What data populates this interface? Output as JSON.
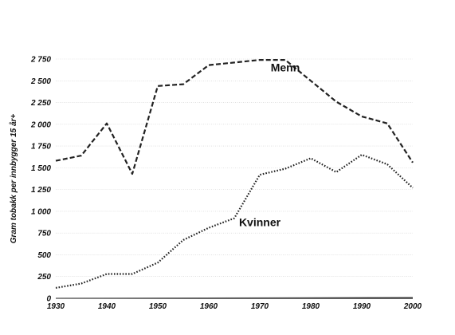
{
  "chart_data": {
    "type": "line",
    "ylabel": "Gram tobakk per innbygger 15 år+",
    "xlabel": "",
    "title": "",
    "xlim": [
      1930,
      2000
    ],
    "ylim": [
      0,
      2750
    ],
    "x_ticks": [
      1930,
      1940,
      1950,
      1960,
      1970,
      1980,
      1990,
      2000
    ],
    "y_ticks": [
      0,
      250,
      500,
      750,
      1000,
      1250,
      1500,
      1750,
      2000,
      2250,
      2500,
      2750
    ],
    "y_tick_labels": [
      "0",
      "250",
      "500",
      "750",
      "1 000",
      "1 250",
      "1 500",
      "1 750",
      "2 000",
      "2 250",
      "2 500",
      "2 750"
    ],
    "grid": true,
    "series": [
      {
        "name": "Menn",
        "style": "dashed",
        "label_at": [
          1975,
          2610
        ],
        "x": [
          1930,
          1935,
          1940,
          1945,
          1950,
          1955,
          1960,
          1965,
          1970,
          1975,
          1980,
          1985,
          1990,
          1995,
          2000
        ],
        "values": [
          1580,
          1640,
          2010,
          1430,
          2440,
          2460,
          2680,
          2710,
          2740,
          2740,
          2500,
          2260,
          2090,
          2010,
          1560
        ]
      },
      {
        "name": "Kvinner",
        "style": "dotted",
        "label_at": [
          1970,
          830
        ],
        "x": [
          1930,
          1935,
          1940,
          1945,
          1950,
          1955,
          1960,
          1965,
          1970,
          1975,
          1980,
          1985,
          1990,
          1995,
          2000
        ],
        "values": [
          120,
          170,
          280,
          280,
          410,
          670,
          810,
          920,
          1420,
          1490,
          1610,
          1450,
          1650,
          1540,
          1270
        ]
      },
      {
        "name": "",
        "style": "solid",
        "x": [
          1930,
          2000
        ],
        "values": [
          0,
          10
        ]
      }
    ]
  }
}
